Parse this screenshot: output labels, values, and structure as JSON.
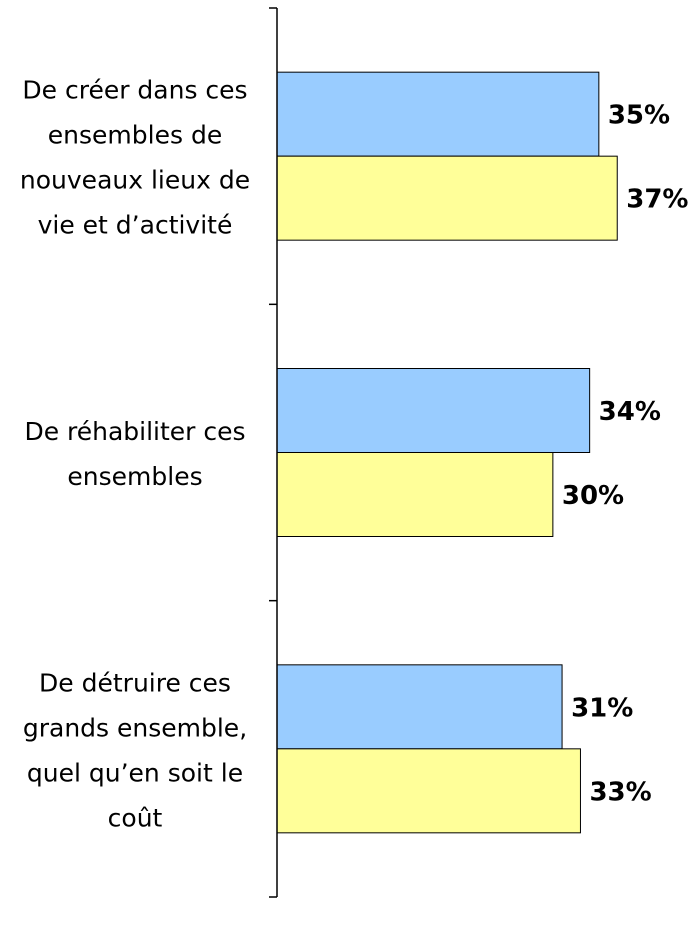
{
  "chart_data": {
    "type": "hbar",
    "categories": [
      "De créer dans ces ensembles de nouveaux lieux de vie et d’activité",
      "De réhabiliter ces ensembles",
      "De détruire ces grands ensemble, quel qu’en soit le coût"
    ],
    "series": [
      {
        "color": "#99ccff",
        "values": [
          35,
          34,
          31
        ],
        "value_labels": [
          "35%",
          "34%",
          "31%"
        ]
      },
      {
        "color": "#ffff99",
        "values": [
          37,
          30,
          33
        ],
        "value_labels": [
          "37%",
          "30%",
          "33%"
        ]
      }
    ],
    "xlim": [
      0,
      46
    ]
  }
}
